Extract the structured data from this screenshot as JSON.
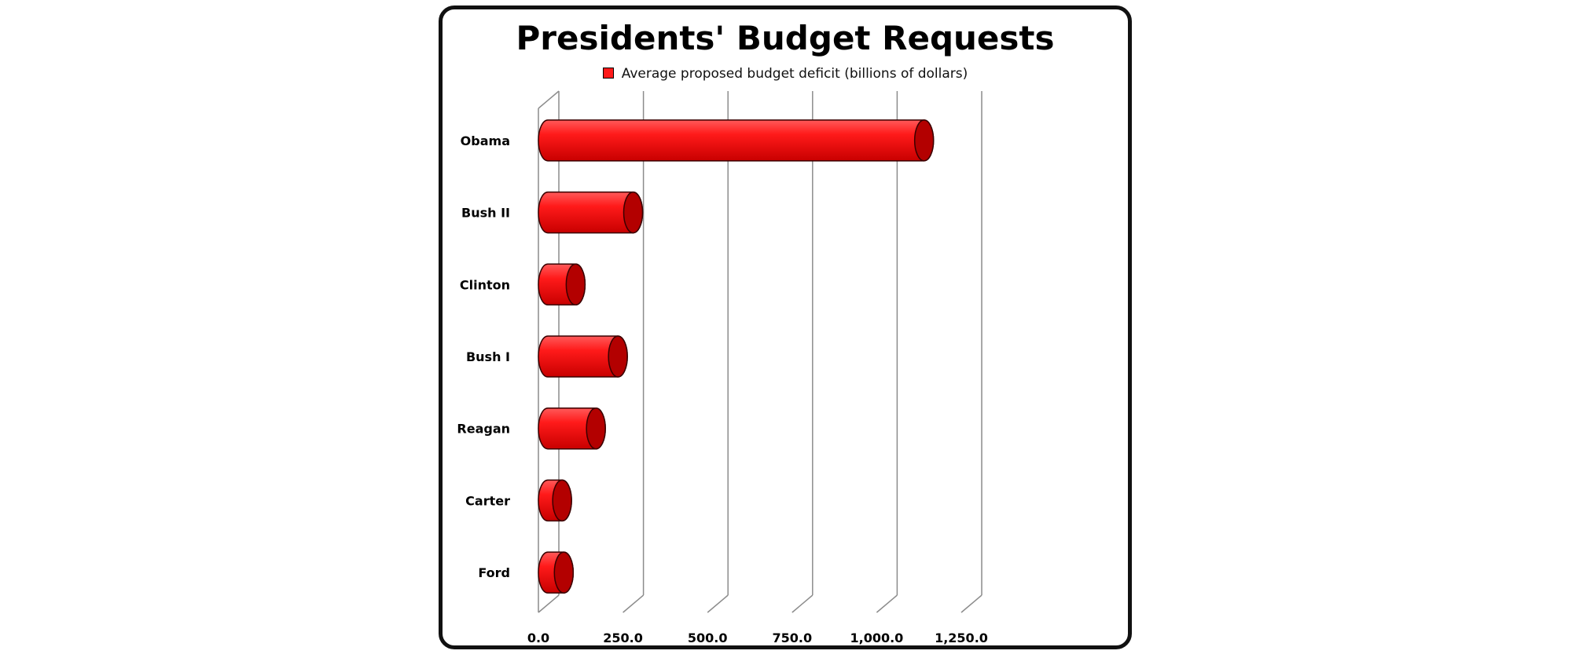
{
  "chart_data": {
    "type": "bar",
    "orientation": "horizontal",
    "title": "Presidents' Budget Requests",
    "legend": "Average proposed budget deficit (billions of dollars)",
    "legend_placement": "top",
    "categories": [
      "Obama",
      "Bush II",
      "Clinton",
      "Bush I",
      "Reagan",
      "Carter",
      "Ford"
    ],
    "series": [
      {
        "name": "Average proposed budget deficit (billions of dollars)",
        "values": [
          1140,
          280,
          110,
          235,
          170,
          70,
          75
        ]
      }
    ],
    "xlim": [
      0,
      1250
    ],
    "xticks": [
      0,
      250,
      500,
      750,
      1000,
      1250
    ],
    "xtick_labels": [
      "0.0",
      "250.0",
      "500.0",
      "750.0",
      "1,000.0",
      "1,250.0"
    ],
    "xlabel": "",
    "ylabel": "",
    "grid": "vertical",
    "colors": {
      "bar": "#ff1a1a",
      "bar_dark": "#b30000",
      "grid": "#8c8c8c"
    }
  }
}
